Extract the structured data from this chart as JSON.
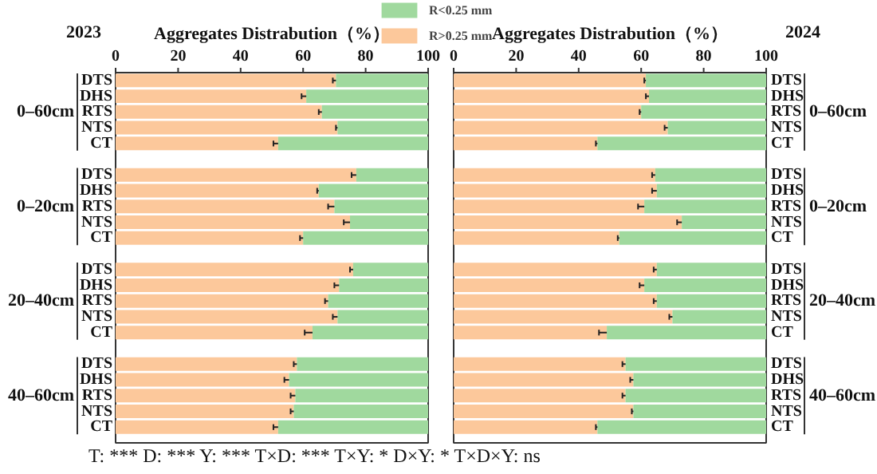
{
  "chart_data": [
    {
      "type": "bar",
      "orientation": "horizontal",
      "stacked": true,
      "title": "2023",
      "xlabel": "Aggregates Distrabution（%）",
      "categories": [
        "DTS",
        "DHS",
        "RTS",
        "NTS",
        "CT",
        null,
        "DTS",
        "DHS",
        "RTS",
        "NTS",
        "CT",
        null,
        "DTS",
        "DHS",
        "RTS",
        "NTS",
        "CT",
        null,
        "DTS",
        "DHS",
        "RTS",
        "NTS",
        "CT"
      ],
      "series": [
        {
          "name": "R>0.25 mm",
          "color": "#fcc89b",
          "values": [
            70.5,
            61,
            66,
            71,
            52,
            null,
            77,
            65,
            70,
            75,
            60,
            null,
            76,
            71.5,
            68,
            71,
            63,
            null,
            58,
            55.5,
            57.5,
            57,
            52
          ],
          "errors": [
            1,
            1.5,
            1,
            0.5,
            1.5,
            null,
            1.5,
            0.5,
            2,
            2,
            1,
            null,
            1,
            1.5,
            1,
            1.5,
            2.5,
            null,
            1,
            1.5,
            1.5,
            1,
            1.5
          ]
        },
        {
          "name": "R<0.25 mm",
          "color": "#a0d99e",
          "values": [
            29.5,
            39,
            34,
            29,
            48,
            null,
            23,
            35,
            30,
            25,
            40,
            null,
            24,
            28.5,
            32,
            29,
            37,
            null,
            42,
            44.5,
            42.5,
            43,
            48
          ]
        }
      ],
      "xlim": [
        0,
        100
      ],
      "xticks": [
        0,
        20,
        40,
        60,
        80,
        100
      ],
      "legend": "top right",
      "annotations": [
        "0–60cm",
        "0–20cm",
        "20–40cm",
        "40–60cm",
        "T: ***    D: ***    Y: ***    T×D: ***    T×Y: *    D×Y: *    T×D×Y: ns"
      ]
    },
    {
      "type": "bar",
      "orientation": "horizontal",
      "stacked": true,
      "title": "2024",
      "xlabel": "Aggregates Distrabution（%）",
      "categories": [
        "DTS",
        "DHS",
        "RTS",
        "NTS",
        "CT",
        null,
        "DTS",
        "DHS",
        "RTS",
        "NTS",
        "CT",
        null,
        "DTS",
        "DHS",
        "RTS",
        "NTS",
        "CT",
        null,
        "DTS",
        "DHS",
        "RTS",
        "NTS",
        "CT"
      ],
      "series": [
        {
          "color": "#fcc89b",
          "values": [
            61.5,
            62.5,
            60,
            68.5,
            46,
            null,
            64.5,
            65,
            61,
            73,
            53,
            null,
            65,
            61,
            65,
            70,
            49,
            null,
            55,
            57.5,
            55,
            57.5,
            46
          ],
          "errors": [
            0.5,
            1,
            0.5,
            1,
            0.5,
            null,
            1,
            1.5,
            2,
            1.5,
            0.5,
            null,
            1,
            1.5,
            1,
            1,
            2.5,
            null,
            1,
            1,
            1,
            0.5,
            0.5
          ]
        },
        {
          "color": "#a0d99e",
          "values": [
            38.5,
            37.5,
            40,
            31.5,
            54,
            null,
            35.5,
            35,
            39,
            27,
            47,
            null,
            35,
            39,
            35,
            30,
            51,
            null,
            45,
            42.5,
            45,
            42.5,
            54
          ]
        }
      ],
      "xlim": [
        0,
        100
      ],
      "xticks": [
        0,
        20,
        40,
        60,
        80,
        100
      ],
      "annotations": [
        "0–60cm",
        "0–20cm",
        "20–40cm",
        "40–60cm"
      ]
    }
  ]
}
